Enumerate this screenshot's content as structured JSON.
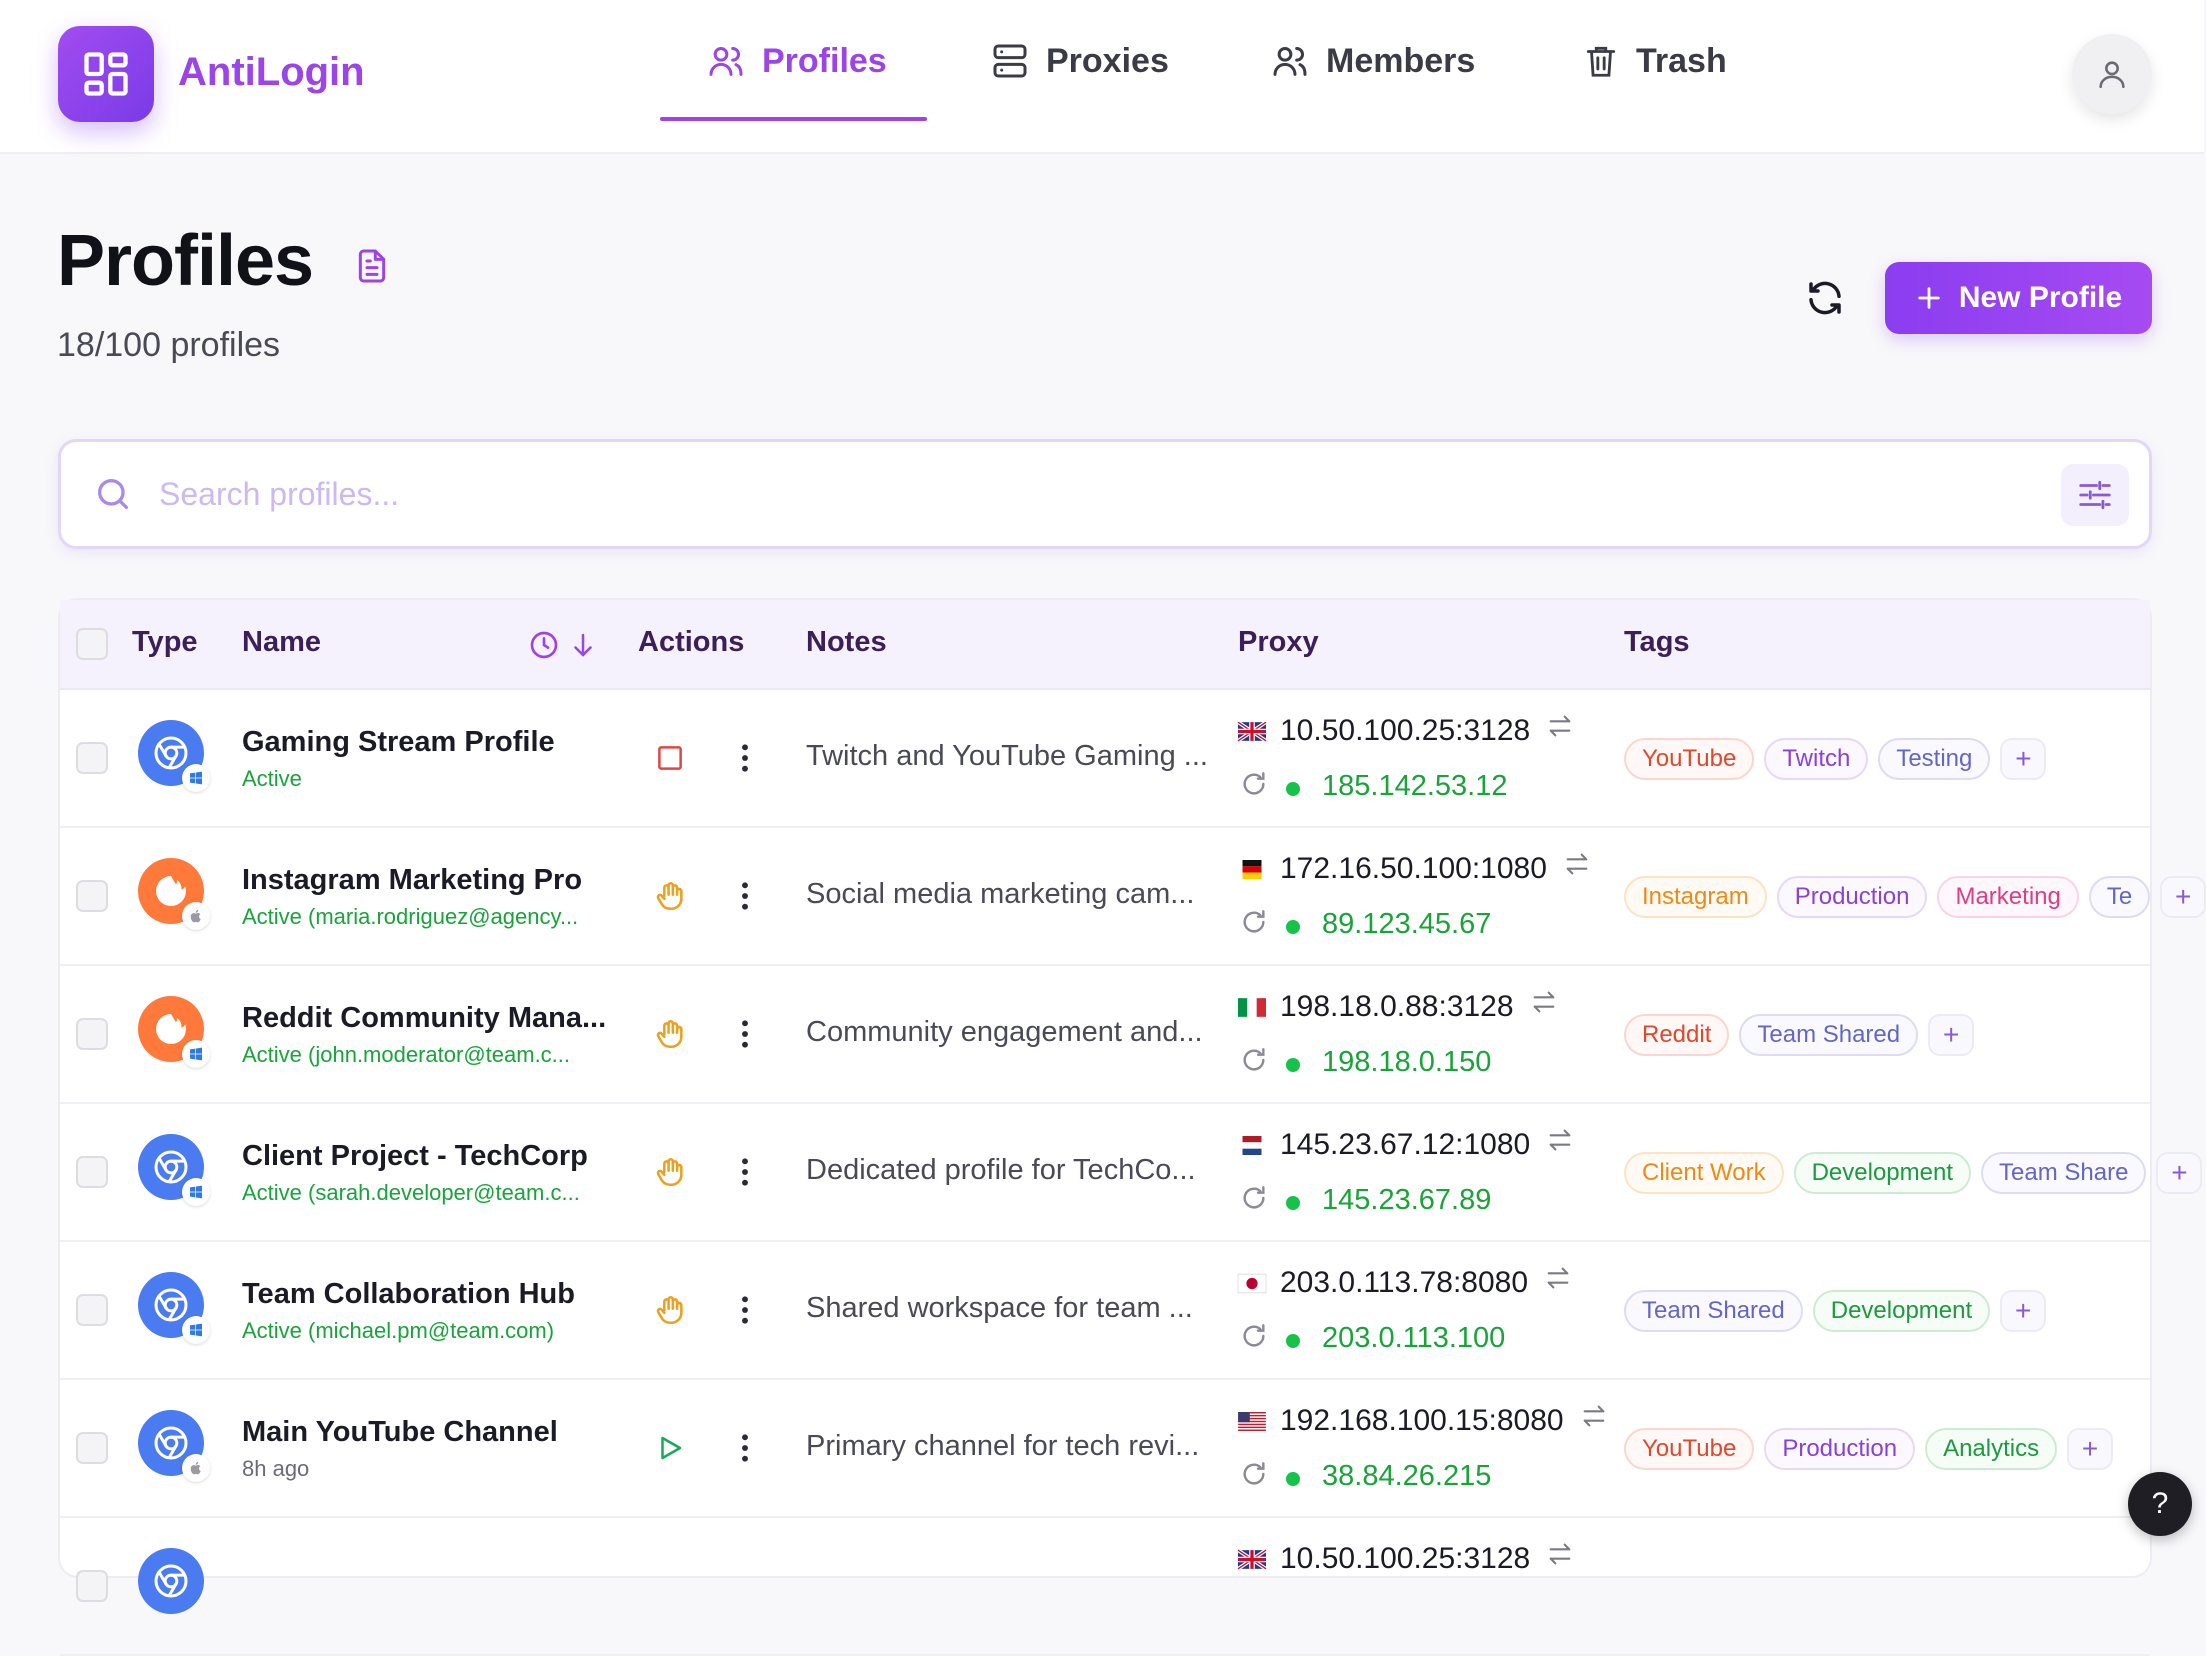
{
  "app": {
    "brand": "AntiLogin"
  },
  "nav": [
    {
      "label": "Profiles",
      "icon": "users-icon",
      "active": true
    },
    {
      "label": "Proxies",
      "icon": "server-icon",
      "active": false
    },
    {
      "label": "Members",
      "icon": "users-icon",
      "active": false
    },
    {
      "label": "Trash",
      "icon": "trash-icon",
      "active": false
    }
  ],
  "page": {
    "title": "Profiles",
    "count": "18/100 profiles",
    "new_button": "New Profile"
  },
  "search": {
    "placeholder": "Search profiles..."
  },
  "columns": {
    "type": "Type",
    "name": "Name",
    "actions": "Actions",
    "notes": "Notes",
    "proxy": "Proxy",
    "tags": "Tags"
  },
  "colors": {
    "accent": "#9b44e8",
    "active_green": "#19a33b"
  },
  "rows": [
    {
      "name": "Gaming Stream Profile",
      "status": "Active",
      "browser": "chrome",
      "os": "windows",
      "action": "stop",
      "note": "Twitch and YouTube Gaming ...",
      "flag": "uk",
      "proxy": "10.50.100.25:3128",
      "ip": "185.142.53.12",
      "tags": [
        {
          "label": "YouTube",
          "color": "red"
        },
        {
          "label": "Twitch",
          "color": "purple"
        },
        {
          "label": "Testing",
          "color": "indigo"
        }
      ]
    },
    {
      "name": "Instagram Marketing Pro",
      "status": "Active (maria.rodriguez@agency...",
      "browser": "firefox",
      "os": "apple",
      "action": "hand",
      "note": "Social media marketing cam...",
      "flag": "de",
      "proxy": "172.16.50.100:1080",
      "ip": "89.123.45.67",
      "tags": [
        {
          "label": "Instagram",
          "color": "orange"
        },
        {
          "label": "Production",
          "color": "purple"
        },
        {
          "label": "Marketing",
          "color": "pink"
        },
        {
          "label": "Te",
          "color": "indigo"
        }
      ]
    },
    {
      "name": "Reddit Community Mana...",
      "status": "Active (john.moderator@team.c...",
      "browser": "firefox",
      "os": "windows",
      "action": "hand",
      "note": "Community engagement and...",
      "flag": "it",
      "proxy": "198.18.0.88:3128",
      "ip": "198.18.0.150",
      "tags": [
        {
          "label": "Reddit",
          "color": "red"
        },
        {
          "label": "Team Shared",
          "color": "indigo"
        }
      ]
    },
    {
      "name": "Client Project - TechCorp",
      "status": "Active (sarah.developer@team.c...",
      "browser": "chrome",
      "os": "windows",
      "action": "hand",
      "note": "Dedicated profile for TechCo...",
      "flag": "nl",
      "proxy": "145.23.67.12:1080",
      "ip": "145.23.67.89",
      "tags": [
        {
          "label": "Client Work",
          "color": "orange"
        },
        {
          "label": "Development",
          "color": "green"
        },
        {
          "label": "Team Share",
          "color": "indigo"
        }
      ]
    },
    {
      "name": "Team Collaboration Hub",
      "status": "Active (michael.pm@team.com)",
      "browser": "chrome",
      "os": "windows",
      "action": "hand",
      "note": "Shared workspace for team ...",
      "flag": "jp",
      "proxy": "203.0.113.78:8080",
      "ip": "203.0.113.100",
      "tags": [
        {
          "label": "Team Shared",
          "color": "indigo"
        },
        {
          "label": "Development",
          "color": "green"
        }
      ]
    },
    {
      "name": "Main YouTube Channel",
      "status": "8h ago",
      "browser": "chrome",
      "os": "apple",
      "action": "play",
      "note": "Primary channel for tech revi...",
      "flag": "us",
      "proxy": "192.168.100.15:8080",
      "ip": "38.84.26.215",
      "tags": [
        {
          "label": "YouTube",
          "color": "red"
        },
        {
          "label": "Production",
          "color": "purple"
        },
        {
          "label": "Analytics",
          "color": "green"
        }
      ]
    },
    {
      "name": "",
      "status": "",
      "browser": "chrome",
      "os": "",
      "action": "",
      "note": "",
      "flag": "uk",
      "proxy": "10.50.100.25:3128",
      "ip": "",
      "tags": []
    }
  ]
}
